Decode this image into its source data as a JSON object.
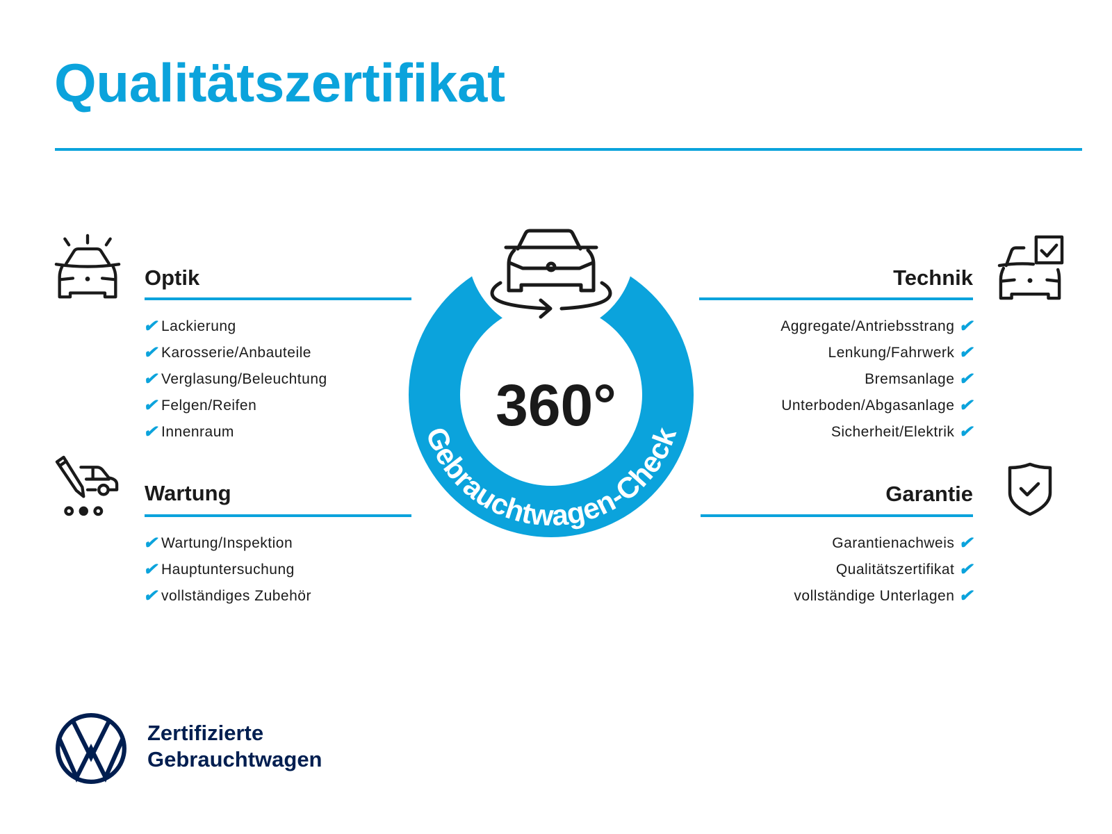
{
  "title": "Qualitätszertifikat",
  "colors": {
    "accent": "#0ba3dc",
    "text": "#1a1a1a",
    "brand_navy": "#001e50"
  },
  "badge": {
    "value": "360°",
    "arc_text": "Gebrauchtwagen-Check",
    "icon": "car-rotate-icon"
  },
  "check_glyph": "✔",
  "sections": {
    "optik": {
      "heading": "Optik",
      "icon": "car-lights-icon",
      "items": [
        "Lackierung",
        "Karosserie/Anbauteile",
        "Verglasung/Beleuchtung",
        "Felgen/Reifen",
        "Innenraum"
      ]
    },
    "wartung": {
      "heading": "Wartung",
      "icon": "service-van-pencil-icon",
      "items": [
        "Wartung/Inspektion",
        "Hauptuntersuchung",
        "vollständiges Zubehör"
      ]
    },
    "technik": {
      "heading": "Technik",
      "icon": "car-checkbox-icon",
      "items": [
        "Aggregate/Antriebsstrang",
        "Lenkung/Fahrwerk",
        "Bremsanlage",
        "Unterboden/Abgasanlage",
        "Sicherheit/Elektrik"
      ]
    },
    "garantie": {
      "heading": "Garantie",
      "icon": "shield-check-icon",
      "items": [
        "Garantienachweis",
        "Qualitätszertifikat",
        "vollständige Unterlagen"
      ]
    }
  },
  "footer": {
    "logo": "VW",
    "line1": "Zertifizierte",
    "line2": "Gebrauchtwagen"
  }
}
